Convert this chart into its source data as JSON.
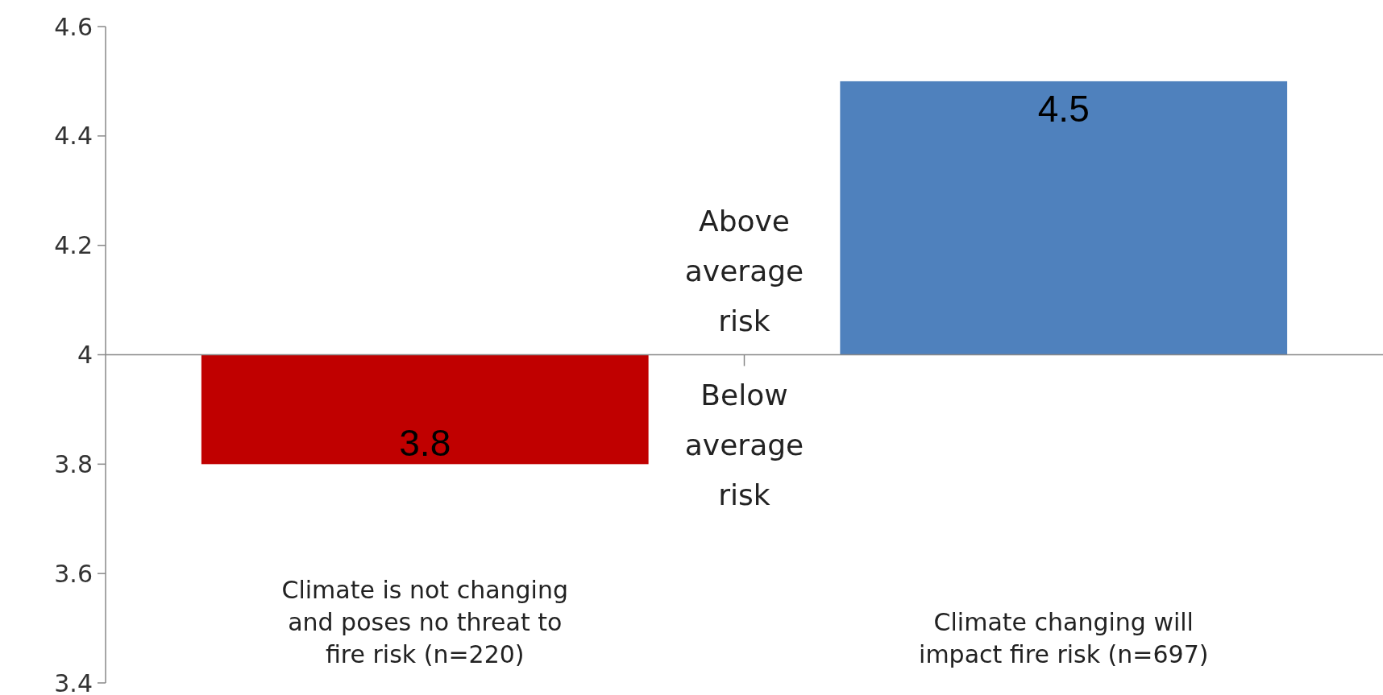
{
  "chart_data": {
    "type": "bar",
    "categories": [
      "Climate is not changing and poses no threat to fire risk (n=220)",
      "Climate changing will impact fire risk (n=697)"
    ],
    "base": [
      4,
      4
    ],
    "values": [
      -0.2,
      0.5
    ],
    "value_labels": [
      "3.8",
      "4.5"
    ],
    "colors": [
      "#c00000",
      "#4f81bd"
    ],
    "ylim": [
      3.4,
      4.6
    ],
    "yticks": [
      3.4,
      3.6,
      3.8,
      4,
      4.2,
      4.4,
      4.6
    ],
    "annotations": [
      "Above average risk",
      "Below average risk"
    ],
    "ref_lines": [
      {
        "axis": "y",
        "value": 4,
        "color": "#888888"
      }
    ]
  }
}
